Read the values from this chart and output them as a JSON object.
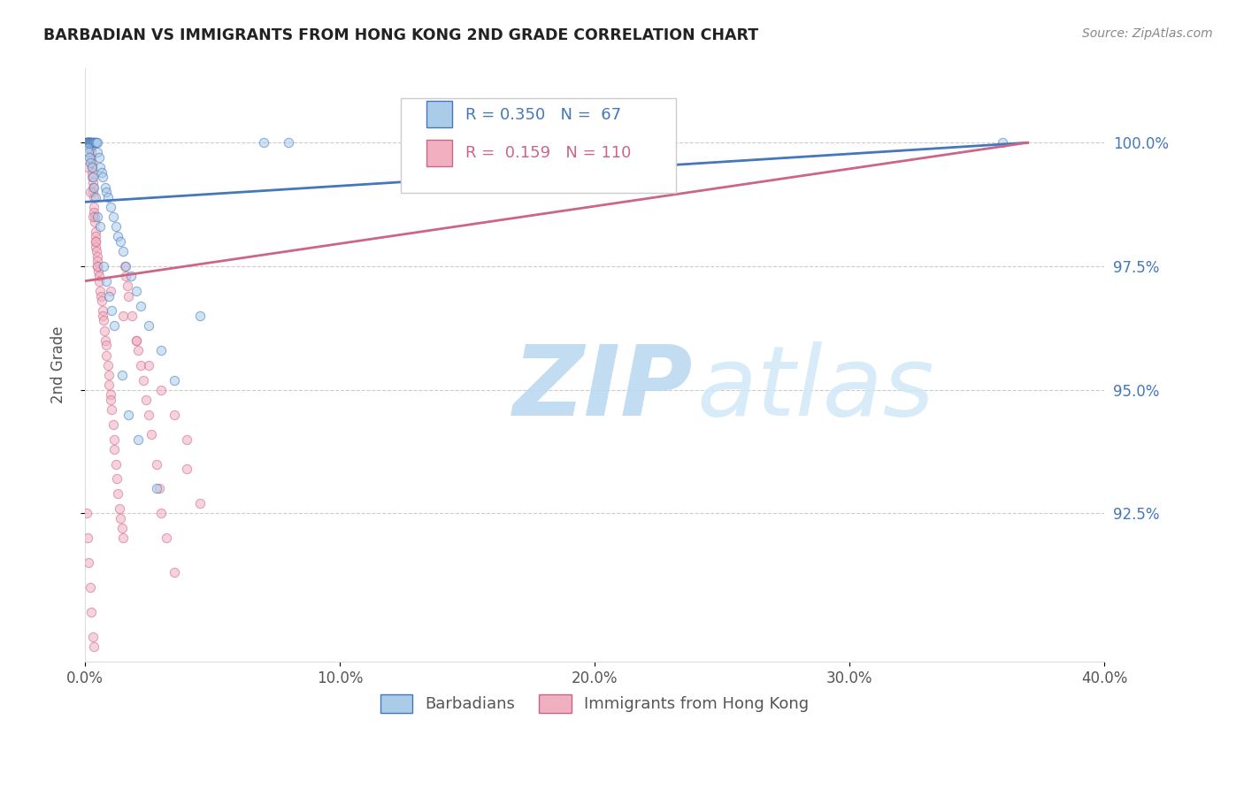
{
  "title": "BARBADIAN VS IMMIGRANTS FROM HONG KONG 2ND GRADE CORRELATION CHART",
  "source": "Source: ZipAtlas.com",
  "xlabel_vals": [
    0.0,
    10.0,
    20.0,
    30.0,
    40.0
  ],
  "ylabel_vals": [
    92.5,
    95.0,
    97.5,
    100.0
  ],
  "ylim": [
    89.5,
    101.5
  ],
  "xlim": [
    0.0,
    40.0
  ],
  "ylabel": "2nd Grade",
  "blue_R": 0.35,
  "blue_N": 67,
  "pink_R": 0.159,
  "pink_N": 110,
  "blue_color": "#aacce8",
  "pink_color": "#f0b0c0",
  "blue_line_color": "#4477bb",
  "pink_line_color": "#cc6688",
  "scatter_alpha": 0.55,
  "scatter_size": 55,
  "watermark_color": "#dceefa",
  "legend_label_blue": "Barbadians",
  "legend_label_pink": "Immigrants from Hong Kong",
  "blue_x": [
    0.05,
    0.08,
    0.1,
    0.12,
    0.15,
    0.15,
    0.18,
    0.2,
    0.22,
    0.22,
    0.25,
    0.25,
    0.28,
    0.3,
    0.3,
    0.32,
    0.35,
    0.35,
    0.38,
    0.4,
    0.42,
    0.45,
    0.48,
    0.5,
    0.55,
    0.6,
    0.65,
    0.7,
    0.8,
    0.85,
    0.9,
    1.0,
    1.1,
    1.2,
    1.3,
    1.4,
    1.5,
    1.6,
    1.8,
    2.0,
    2.2,
    2.5,
    3.0,
    3.5,
    0.1,
    0.13,
    0.17,
    0.21,
    0.26,
    0.31,
    0.36,
    0.41,
    0.5,
    0.58,
    0.72,
    0.85,
    0.95,
    1.05,
    1.15,
    1.45,
    1.7,
    2.1,
    2.8,
    4.5,
    7.0,
    8.0,
    36.0
  ],
  "blue_y": [
    100.0,
    100.0,
    100.0,
    100.0,
    100.0,
    100.0,
    100.0,
    100.0,
    100.0,
    100.0,
    100.0,
    100.0,
    100.0,
    100.0,
    100.0,
    100.0,
    100.0,
    100.0,
    100.0,
    100.0,
    100.0,
    100.0,
    100.0,
    99.8,
    99.7,
    99.5,
    99.4,
    99.3,
    99.1,
    99.0,
    98.9,
    98.7,
    98.5,
    98.3,
    98.1,
    98.0,
    97.8,
    97.5,
    97.3,
    97.0,
    96.7,
    96.3,
    95.8,
    95.2,
    99.9,
    99.8,
    99.7,
    99.6,
    99.5,
    99.3,
    99.1,
    98.9,
    98.5,
    98.3,
    97.5,
    97.2,
    96.9,
    96.6,
    96.3,
    95.3,
    94.5,
    94.0,
    93.0,
    96.5,
    100.0,
    100.0,
    100.0
  ],
  "pink_x": [
    0.05,
    0.05,
    0.07,
    0.08,
    0.09,
    0.1,
    0.1,
    0.11,
    0.12,
    0.13,
    0.14,
    0.15,
    0.15,
    0.16,
    0.17,
    0.18,
    0.19,
    0.2,
    0.21,
    0.22,
    0.23,
    0.24,
    0.25,
    0.26,
    0.27,
    0.28,
    0.29,
    0.3,
    0.31,
    0.32,
    0.33,
    0.35,
    0.36,
    0.37,
    0.38,
    0.4,
    0.41,
    0.42,
    0.43,
    0.45,
    0.47,
    0.48,
    0.5,
    0.52,
    0.55,
    0.57,
    0.6,
    0.62,
    0.65,
    0.68,
    0.7,
    0.72,
    0.75,
    0.8,
    0.82,
    0.85,
    0.9,
    0.92,
    0.95,
    1.0,
    1.02,
    1.05,
    1.1,
    1.13,
    1.15,
    1.2,
    1.25,
    1.3,
    1.35,
    1.4,
    1.45,
    1.5,
    1.55,
    1.6,
    1.65,
    1.7,
    1.85,
    2.0,
    2.1,
    2.2,
    2.3,
    2.4,
    2.5,
    2.6,
    2.8,
    2.9,
    3.0,
    3.2,
    3.5,
    4.0,
    4.5,
    0.1,
    0.2,
    0.3,
    0.4,
    0.5,
    1.0,
    1.5,
    2.0,
    2.5,
    3.0,
    3.5,
    4.0,
    0.08,
    0.12,
    0.15,
    0.2,
    0.25,
    0.3,
    0.35
  ],
  "pink_y": [
    100.0,
    100.0,
    100.0,
    100.0,
    100.0,
    100.0,
    100.0,
    100.0,
    100.0,
    100.0,
    100.0,
    100.0,
    100.0,
    100.0,
    100.0,
    100.0,
    100.0,
    100.0,
    100.0,
    100.0,
    99.9,
    99.8,
    99.7,
    99.6,
    99.5,
    99.4,
    99.3,
    99.2,
    99.1,
    99.0,
    98.9,
    98.7,
    98.6,
    98.5,
    98.4,
    98.2,
    98.1,
    98.0,
    97.9,
    97.8,
    97.7,
    97.6,
    97.5,
    97.4,
    97.3,
    97.2,
    97.0,
    96.9,
    96.8,
    96.6,
    96.5,
    96.4,
    96.2,
    96.0,
    95.9,
    95.7,
    95.5,
    95.3,
    95.1,
    94.9,
    94.8,
    94.6,
    94.3,
    94.0,
    93.8,
    93.5,
    93.2,
    92.9,
    92.6,
    92.4,
    92.2,
    92.0,
    97.5,
    97.3,
    97.1,
    96.9,
    96.5,
    96.0,
    95.8,
    95.5,
    95.2,
    94.8,
    94.5,
    94.1,
    93.5,
    93.0,
    92.5,
    92.0,
    91.3,
    93.4,
    92.7,
    99.5,
    99.0,
    98.5,
    98.0,
    97.5,
    97.0,
    96.5,
    96.0,
    95.5,
    95.0,
    94.5,
    94.0,
    92.5,
    92.0,
    91.5,
    91.0,
    90.5,
    90.0,
    89.8
  ],
  "blue_line_x": [
    0.0,
    37.0
  ],
  "blue_line_y": [
    98.8,
    100.0
  ],
  "pink_line_x": [
    0.0,
    37.0
  ],
  "pink_line_y": [
    97.2,
    100.0
  ]
}
